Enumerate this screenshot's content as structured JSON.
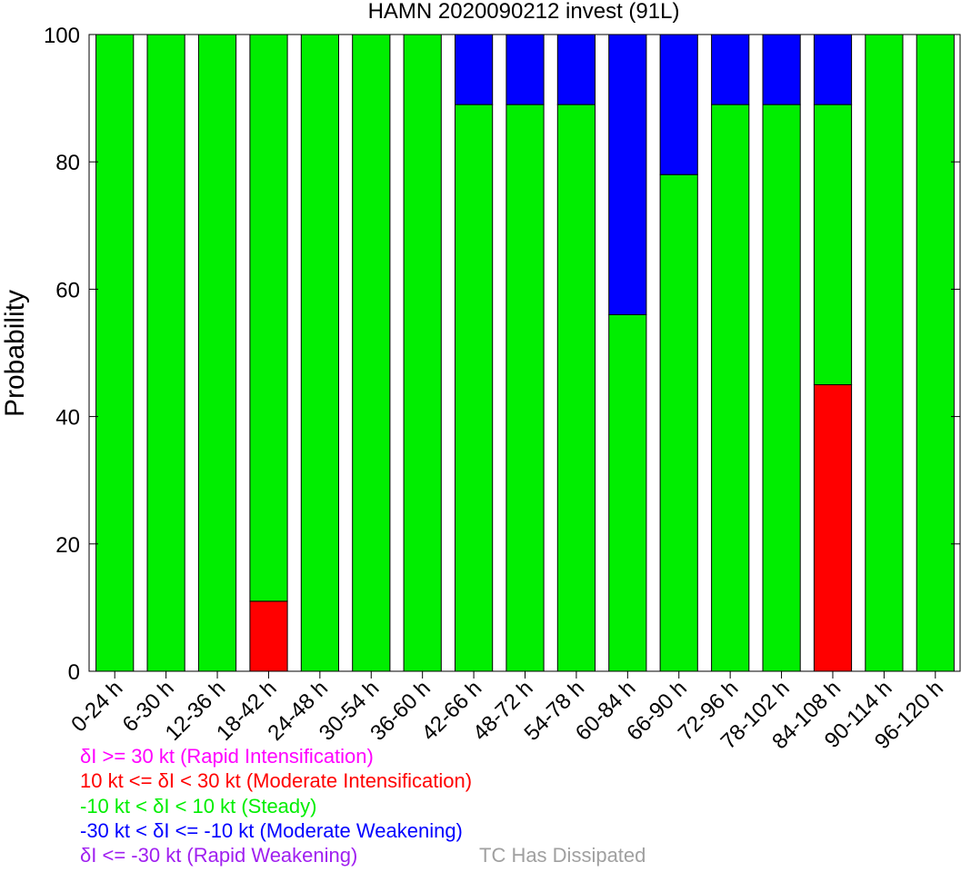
{
  "chart_data": {
    "type": "bar",
    "stacked": true,
    "title": "HAMN 2020090212 invest (91L)",
    "xlabel": "",
    "ylabel": "Probability",
    "ylim": [
      0,
      100
    ],
    "yticks": [
      0,
      20,
      40,
      60,
      80,
      100
    ],
    "grid": false,
    "categories": [
      "0-24 h",
      "6-30 h",
      "12-36 h",
      "18-42 h",
      "24-48 h",
      "30-54 h",
      "36-60 h",
      "42-66 h",
      "48-72 h",
      "54-78 h",
      "60-84 h",
      "66-90 h",
      "72-96 h",
      "78-102 h",
      "84-108 h",
      "90-114 h",
      "96-120 h"
    ],
    "series": [
      {
        "name": "Rapid Intensification",
        "color": "#ff00ff",
        "values": [
          0,
          0,
          0,
          0,
          0,
          0,
          0,
          0,
          0,
          0,
          0,
          0,
          0,
          0,
          0,
          0,
          0
        ]
      },
      {
        "name": "Moderate Intensification",
        "color": "#ff0000",
        "values": [
          0,
          0,
          0,
          11,
          0,
          0,
          0,
          0,
          0,
          0,
          0,
          0,
          0,
          0,
          45,
          0,
          0
        ]
      },
      {
        "name": "Steady",
        "color": "#00ee00",
        "values": [
          100,
          100,
          100,
          89,
          100,
          100,
          100,
          89,
          89,
          89,
          56,
          78,
          89,
          89,
          44,
          100,
          100
        ]
      },
      {
        "name": "Moderate Weakening",
        "color": "#0000ff",
        "values": [
          0,
          0,
          0,
          0,
          0,
          0,
          0,
          11,
          11,
          11,
          44,
          22,
          11,
          11,
          11,
          0,
          0
        ]
      },
      {
        "name": "Rapid Weakening",
        "color": "#a020f0",
        "values": [
          0,
          0,
          0,
          0,
          0,
          0,
          0,
          0,
          0,
          0,
          0,
          0,
          0,
          0,
          0,
          0,
          0
        ]
      }
    ]
  },
  "legend": [
    {
      "text": "δI >= 30 kt (Rapid Intensification)",
      "color": "#ff00ff"
    },
    {
      "text": "10 kt <= δI < 30 kt (Moderate Intensification)",
      "color": "#ff0000"
    },
    {
      "text": "-10 kt < δI < 10 kt (Steady)",
      "color": "#00ee00"
    },
    {
      "text": "-30 kt < δI <= -10 kt (Moderate Weakening)",
      "color": "#0000ff"
    },
    {
      "text": "δI <= -30 kt (Rapid Weakening)",
      "color": "#a020f0"
    }
  ],
  "dissipated_label": "TC Has Dissipated"
}
